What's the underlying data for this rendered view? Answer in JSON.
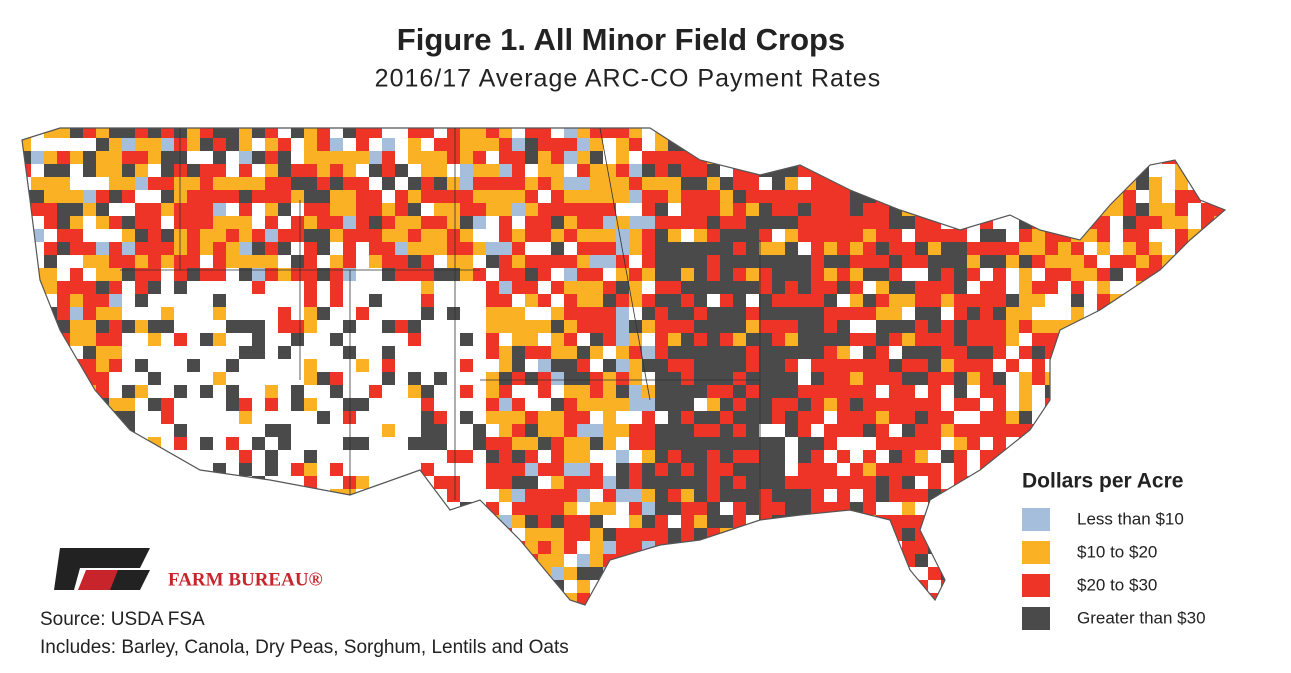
{
  "title": "Figure 1. All Minor Field Crops",
  "subtitle": "2016/17 Average ARC-CO Payment Rates",
  "legend": {
    "title": "Dollars per Acre",
    "items": [
      {
        "label": "Less than $10",
        "color": "#a4bedb"
      },
      {
        "label": "$10 to $20",
        "color": "#fbb124"
      },
      {
        "label": "$20 to $30",
        "color": "#ee3426"
      },
      {
        "label": "Greater than $30",
        "color": "#4a4a4a"
      }
    ]
  },
  "logo_text": "FARM BUREAU®",
  "source": "Source: USDA FSA",
  "note": "Includes: Barley, Canola, Dry Peas, Sorghum, Lentils and Oats"
}
